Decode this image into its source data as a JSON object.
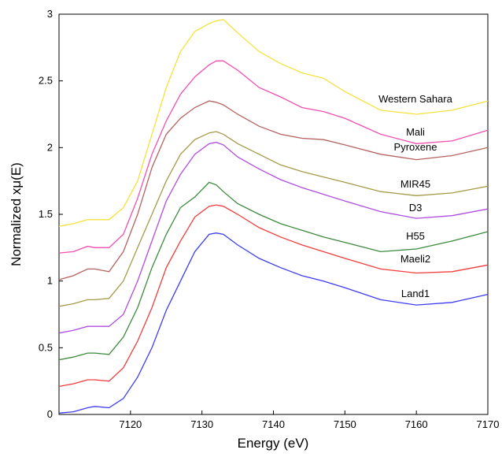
{
  "chart_data": {
    "type": "line",
    "xlabel": "Energy (eV)",
    "ylabel": "Normalized xμ(E)",
    "x": [
      7110,
      7112,
      7114,
      7115,
      7117,
      7119,
      7121,
      7123,
      7125,
      7127,
      7129,
      7131,
      7132,
      7133,
      7135,
      7138,
      7141,
      7144,
      7147,
      7150,
      7155,
      7160,
      7165,
      7170
    ],
    "xlim": [
      7110,
      7170
    ],
    "xticks": [
      7120,
      7130,
      7140,
      7150,
      7160,
      7170
    ],
    "ylim": [
      0,
      3
    ],
    "yticks": [
      0,
      0.5,
      1,
      1.5,
      2,
      2.5,
      3
    ],
    "grid": false,
    "series": [
      {
        "name": "Western Sahara",
        "color": "#f5e23c",
        "values": [
          1.41,
          1.43,
          1.46,
          1.46,
          1.46,
          1.55,
          1.75,
          2.1,
          2.45,
          2.72,
          2.87,
          2.93,
          2.95,
          2.96,
          2.86,
          2.72,
          2.63,
          2.56,
          2.52,
          2.42,
          2.28,
          2.25,
          2.28,
          2.35
        ]
      },
      {
        "name": "Mali",
        "color": "#f04fb0",
        "values": [
          1.21,
          1.22,
          1.26,
          1.25,
          1.25,
          1.35,
          1.62,
          1.95,
          2.2,
          2.4,
          2.53,
          2.62,
          2.65,
          2.65,
          2.58,
          2.45,
          2.38,
          2.3,
          2.27,
          2.22,
          2.1,
          2.03,
          2.05,
          2.13
        ]
      },
      {
        "name": "Pyroxene",
        "color": "#b5635f",
        "values": [
          1.01,
          1.04,
          1.09,
          1.09,
          1.07,
          1.22,
          1.5,
          1.85,
          2.1,
          2.22,
          2.3,
          2.35,
          2.34,
          2.32,
          2.25,
          2.16,
          2.1,
          2.07,
          2.06,
          2.02,
          1.95,
          1.91,
          1.94,
          2.0
        ]
      },
      {
        "name": "MIR45",
        "color": "#a39a4a",
        "values": [
          0.81,
          0.83,
          0.86,
          0.86,
          0.87,
          1.0,
          1.25,
          1.5,
          1.75,
          1.95,
          2.06,
          2.11,
          2.12,
          2.1,
          2.03,
          1.95,
          1.87,
          1.82,
          1.78,
          1.74,
          1.67,
          1.64,
          1.66,
          1.71
        ]
      },
      {
        "name": "D3",
        "color": "#b04de0",
        "values": [
          0.61,
          0.63,
          0.66,
          0.66,
          0.66,
          0.75,
          1.0,
          1.3,
          1.6,
          1.8,
          1.95,
          2.03,
          2.04,
          2.02,
          1.93,
          1.84,
          1.76,
          1.7,
          1.65,
          1.6,
          1.52,
          1.47,
          1.49,
          1.54
        ]
      },
      {
        "name": "H55",
        "color": "#3c8a3c",
        "values": [
          0.41,
          0.43,
          0.46,
          0.46,
          0.45,
          0.58,
          0.8,
          1.1,
          1.35,
          1.55,
          1.63,
          1.74,
          1.72,
          1.67,
          1.58,
          1.5,
          1.43,
          1.38,
          1.33,
          1.29,
          1.22,
          1.24,
          1.3,
          1.37
        ]
      },
      {
        "name": "Maeli2",
        "color": "#f03c3c",
        "values": [
          0.21,
          0.23,
          0.26,
          0.26,
          0.25,
          0.35,
          0.55,
          0.8,
          1.1,
          1.3,
          1.48,
          1.56,
          1.57,
          1.56,
          1.5,
          1.4,
          1.33,
          1.27,
          1.22,
          1.17,
          1.09,
          1.06,
          1.07,
          1.12
        ]
      },
      {
        "name": "Land1",
        "color": "#3c3cf0",
        "values": [
          0.01,
          0.02,
          0.05,
          0.06,
          0.05,
          0.12,
          0.28,
          0.5,
          0.78,
          1.0,
          1.22,
          1.35,
          1.36,
          1.35,
          1.27,
          1.17,
          1.1,
          1.04,
          1.0,
          0.95,
          0.86,
          0.82,
          0.84,
          0.9
        ]
      }
    ]
  }
}
